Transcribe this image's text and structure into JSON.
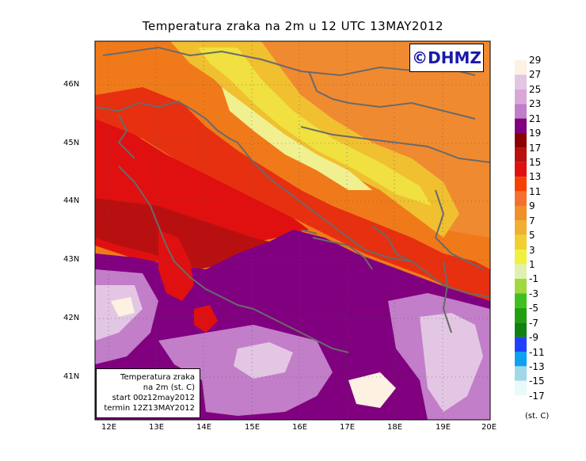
{
  "title": "Temperatura zraka na 2m u 12 UTC 13MAY2012",
  "logo": "©DHMZ",
  "infobox": {
    "line1": "Temperatura zraka",
    "line2": "na 2m (st. C)",
    "line3": "start 00z12may2012",
    "line4": "termin 12Z13MAY2012"
  },
  "lat_labels": [
    "46N",
    "45N",
    "44N",
    "43N",
    "42N",
    "41N"
  ],
  "lon_labels": [
    "12E",
    "13E",
    "14E",
    "15E",
    "16E",
    "17E",
    "18E",
    "19E",
    "20E"
  ],
  "colorbar": {
    "labels": [
      "29",
      "27",
      "25",
      "23",
      "21",
      "19",
      "17",
      "15",
      "13",
      "11",
      "9",
      "7",
      "5",
      "3",
      "1",
      "-1",
      "-3",
      "-5",
      "-7",
      "-9",
      "-11",
      "-13",
      "-15",
      "-17"
    ],
    "colors": [
      "#fdf1e2",
      "#e3c6e3",
      "#d9a8d9",
      "#c27ec8",
      "#800080",
      "#8b0000",
      "#b81010",
      "#e01010",
      "#f54000",
      "#f57030",
      "#f0902a",
      "#f0b030",
      "#f0d030",
      "#f0f040",
      "#e0f0b0",
      "#a0d840",
      "#40c020",
      "#20a010",
      "#108010",
      "#2040ff",
      "#10a0f0",
      "#a0d8e8",
      "#e8fafa"
    ],
    "units": "(st. C)"
  },
  "colors": {
    "sea_purple": "#800080",
    "land_orange": "#f07a1a",
    "coast_gray": "#666666"
  },
  "grid": "dotted"
}
